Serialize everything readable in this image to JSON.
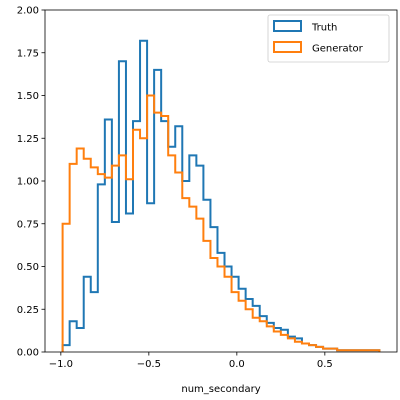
{
  "chart_data": {
    "type": "histogram-step",
    "xlabel": "num_secondary",
    "ylabel": "",
    "xlim": [
      -1.09,
      0.91
    ],
    "ylim": [
      0,
      2.0
    ],
    "xticks": [
      -1.0,
      -0.5,
      0.0,
      0.5
    ],
    "xtick_labels": [
      "−1.0",
      "−0.5",
      "0.0",
      "0.5"
    ],
    "yticks": [
      0,
      0.25,
      0.5,
      0.75,
      1.0,
      1.25,
      1.5,
      1.75,
      2.0
    ],
    "ytick_labels": [
      "0.00",
      "0.25",
      "0.50",
      "0.75",
      "1.00",
      "1.25",
      "1.50",
      "1.75",
      "2.00"
    ],
    "legend": {
      "position": "top-right"
    },
    "series": [
      {
        "name": "Truth",
        "color": "#1f77b4",
        "edges": [
          -0.99,
          -0.95,
          -0.91,
          -0.87,
          -0.83,
          -0.79,
          -0.75,
          -0.71,
          -0.67,
          -0.63,
          -0.59,
          -0.55,
          -0.51,
          -0.47,
          -0.43,
          -0.39,
          -0.35,
          -0.31,
          -0.27,
          -0.23,
          -0.19,
          -0.15,
          -0.11,
          -0.07,
          -0.03,
          0.01,
          0.05,
          0.09,
          0.13,
          0.17,
          0.21,
          0.25,
          0.29,
          0.33,
          0.37,
          0.41,
          0.45,
          0.49,
          0.53,
          0.57,
          0.61,
          0.65,
          0.69,
          0.73,
          0.77,
          0.81
        ],
        "values": [
          0.04,
          0.18,
          0.14,
          0.44,
          0.35,
          0.98,
          1.36,
          0.76,
          1.7,
          0.81,
          1.35,
          1.82,
          0.87,
          1.65,
          1.35,
          1.2,
          1.32,
          1.0,
          1.15,
          1.09,
          0.89,
          0.73,
          0.58,
          0.5,
          0.44,
          0.37,
          0.31,
          0.27,
          0.21,
          0.17,
          0.14,
          0.13,
          0.09,
          0.08,
          0.05,
          0.04,
          0.03,
          0.02,
          0.02,
          0.01,
          0.01,
          0.01,
          0.01,
          0.01,
          0.01
        ]
      },
      {
        "name": "Generator",
        "color": "#ff7f0e",
        "edges": [
          -0.99,
          -0.95,
          -0.91,
          -0.87,
          -0.83,
          -0.79,
          -0.75,
          -0.71,
          -0.67,
          -0.63,
          -0.59,
          -0.55,
          -0.51,
          -0.47,
          -0.43,
          -0.39,
          -0.35,
          -0.31,
          -0.27,
          -0.23,
          -0.19,
          -0.15,
          -0.11,
          -0.07,
          -0.03,
          0.01,
          0.05,
          0.09,
          0.13,
          0.17,
          0.21,
          0.25,
          0.29,
          0.33,
          0.37,
          0.41,
          0.45,
          0.49,
          0.53,
          0.57,
          0.61,
          0.65,
          0.69,
          0.73,
          0.77,
          0.81
        ],
        "values": [
          0.75,
          1.1,
          1.19,
          1.13,
          1.08,
          1.04,
          1.02,
          1.09,
          1.15,
          1.01,
          1.3,
          1.25,
          1.5,
          1.4,
          1.38,
          1.15,
          1.05,
          0.9,
          0.85,
          0.78,
          0.65,
          0.55,
          0.5,
          0.44,
          0.35,
          0.3,
          0.25,
          0.2,
          0.18,
          0.15,
          0.12,
          0.1,
          0.08,
          0.06,
          0.05,
          0.04,
          0.03,
          0.02,
          0.02,
          0.01,
          0.01,
          0.01,
          0.01,
          0.01,
          0.01
        ]
      }
    ]
  }
}
